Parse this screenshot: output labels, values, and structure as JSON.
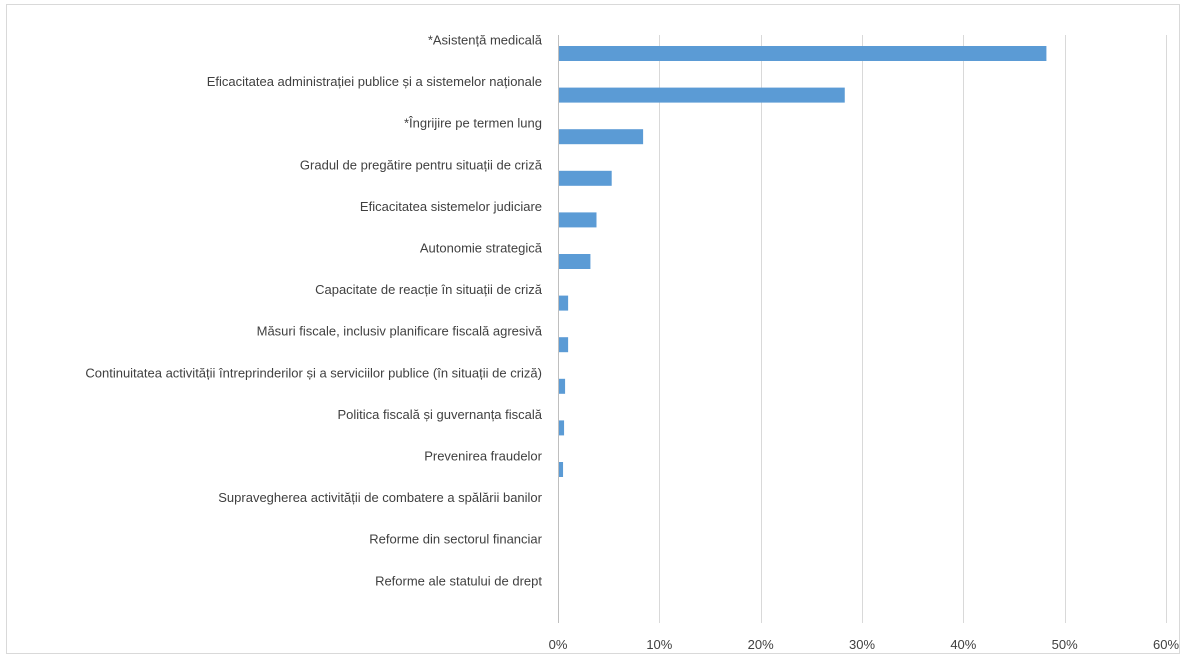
{
  "chart_data": {
    "type": "bar",
    "orientation": "horizontal",
    "categories": [
      "*Asistență medicală",
      "Eficacitatea administrației publice și a sistemelor naționale",
      "*Îngrijire pe termen lung",
      "Gradul de pregătire pentru situații de criză",
      "Eficacitatea sistemelor judiciare",
      "Autonomie strategică",
      "Capacitate de reacție în situații de criză",
      "Măsuri fiscale, inclusiv planificare fiscală agresivă",
      "Continuitatea activității întreprinderilor și a serviciilor publice (în situații de criză)",
      "Politica fiscală și guvernanța fiscală",
      "Prevenirea fraudelor",
      "Supravegherea activității de combatere a spălării banilor",
      "Reforme din sectorul financiar",
      "Reforme ale statului de drept"
    ],
    "values": [
      48.1,
      28.2,
      8.3,
      5.2,
      3.7,
      3.1,
      0.9,
      0.9,
      0.6,
      0.5,
      0.4,
      0,
      0,
      0
    ],
    "xlim": [
      0,
      60
    ],
    "ticks": [
      "0%",
      "10%",
      "20%",
      "30%",
      "40%",
      "50%",
      "60%"
    ],
    "bar_color": "#5b9bd5",
    "grid": true,
    "legend": "none"
  }
}
